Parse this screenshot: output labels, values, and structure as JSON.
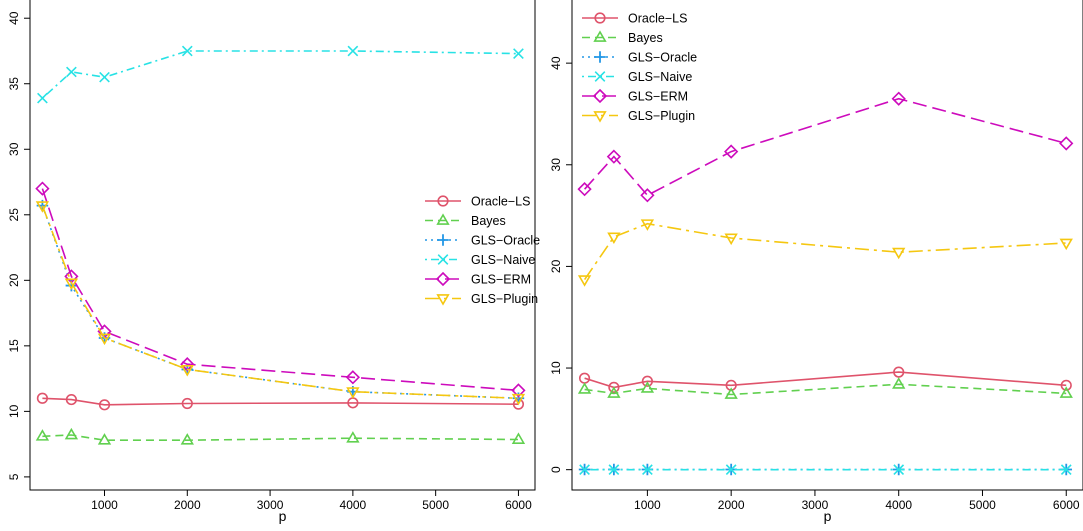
{
  "chart_data": [
    {
      "type": "line",
      "xlabel": "p",
      "ylabel": "",
      "title": "",
      "x": [
        250,
        600,
        1000,
        2000,
        4000,
        6000
      ],
      "xlim": [
        100,
        6200
      ],
      "ylim": [
        4,
        42
      ],
      "xticks": [
        1000,
        2000,
        3000,
        4000,
        5000,
        6000
      ],
      "yticks": [
        5,
        10,
        15,
        20,
        25,
        30,
        35,
        40
      ],
      "grid": false,
      "legend_position": "right-middle",
      "series": [
        {
          "name": "Oracle−LS",
          "values": [
            11.0,
            10.9,
            10.5,
            10.6,
            10.65,
            10.55
          ]
        },
        {
          "name": "Bayes",
          "values": [
            8.1,
            8.2,
            7.8,
            7.8,
            7.95,
            7.85
          ]
        },
        {
          "name": "GLS−Oracle",
          "values": [
            25.7,
            19.6,
            15.6,
            13.2,
            11.5,
            11.0
          ]
        },
        {
          "name": "GLS−Naive",
          "values": [
            33.9,
            35.9,
            35.5,
            37.5,
            37.5,
            37.3
          ]
        },
        {
          "name": "GLS−ERM",
          "values": [
            27.0,
            20.3,
            16.1,
            13.6,
            12.6,
            11.6
          ]
        },
        {
          "name": "GLS−Plugin",
          "values": [
            25.7,
            19.8,
            15.6,
            13.2,
            11.5,
            11.0
          ]
        }
      ]
    },
    {
      "type": "line",
      "xlabel": "p",
      "ylabel": "",
      "title": "",
      "x": [
        250,
        600,
        1000,
        2000,
        4000,
        6000
      ],
      "xlim": [
        100,
        6200
      ],
      "ylim": [
        -2,
        47
      ],
      "xticks": [
        1000,
        2000,
        3000,
        4000,
        5000,
        6000
      ],
      "yticks": [
        0,
        10,
        20,
        30,
        40
      ],
      "grid": false,
      "legend_position": "top-left",
      "series": [
        {
          "name": "Oracle−LS",
          "values": [
            9.0,
            8.1,
            8.7,
            8.3,
            9.6,
            8.3
          ]
        },
        {
          "name": "Bayes",
          "values": [
            7.9,
            7.5,
            8.0,
            7.4,
            8.4,
            7.5
          ]
        },
        {
          "name": "GLS−Oracle",
          "values": [
            0.02,
            0.02,
            0.02,
            0.02,
            0.02,
            0.02
          ]
        },
        {
          "name": "GLS−Naive",
          "values": [
            0.0,
            0.0,
            0.0,
            0.0,
            0.0,
            0.0
          ]
        },
        {
          "name": "GLS−ERM",
          "values": [
            27.6,
            30.8,
            27.0,
            31.3,
            36.5,
            32.1
          ]
        },
        {
          "name": "GLS−Plugin",
          "values": [
            18.7,
            22.9,
            24.2,
            22.8,
            21.4,
            22.3
          ]
        }
      ]
    }
  ],
  "styles": [
    {
      "color": "#DF536B",
      "dash": "",
      "marker": "circle-icon"
    },
    {
      "color": "#61D04F",
      "dash": "8,5",
      "marker": "triangle-up-icon"
    },
    {
      "color": "#2297E6",
      "dash": "2,4",
      "marker": "plus-icon"
    },
    {
      "color": "#28E2E5",
      "dash": "2,4,8,4",
      "marker": "cross-icon"
    },
    {
      "color": "#CD0BBC",
      "dash": "14,6",
      "marker": "diamond-icon"
    },
    {
      "color": "#F5C710",
      "dash": "14,5,3,5",
      "marker": "triangle-down-icon"
    }
  ]
}
